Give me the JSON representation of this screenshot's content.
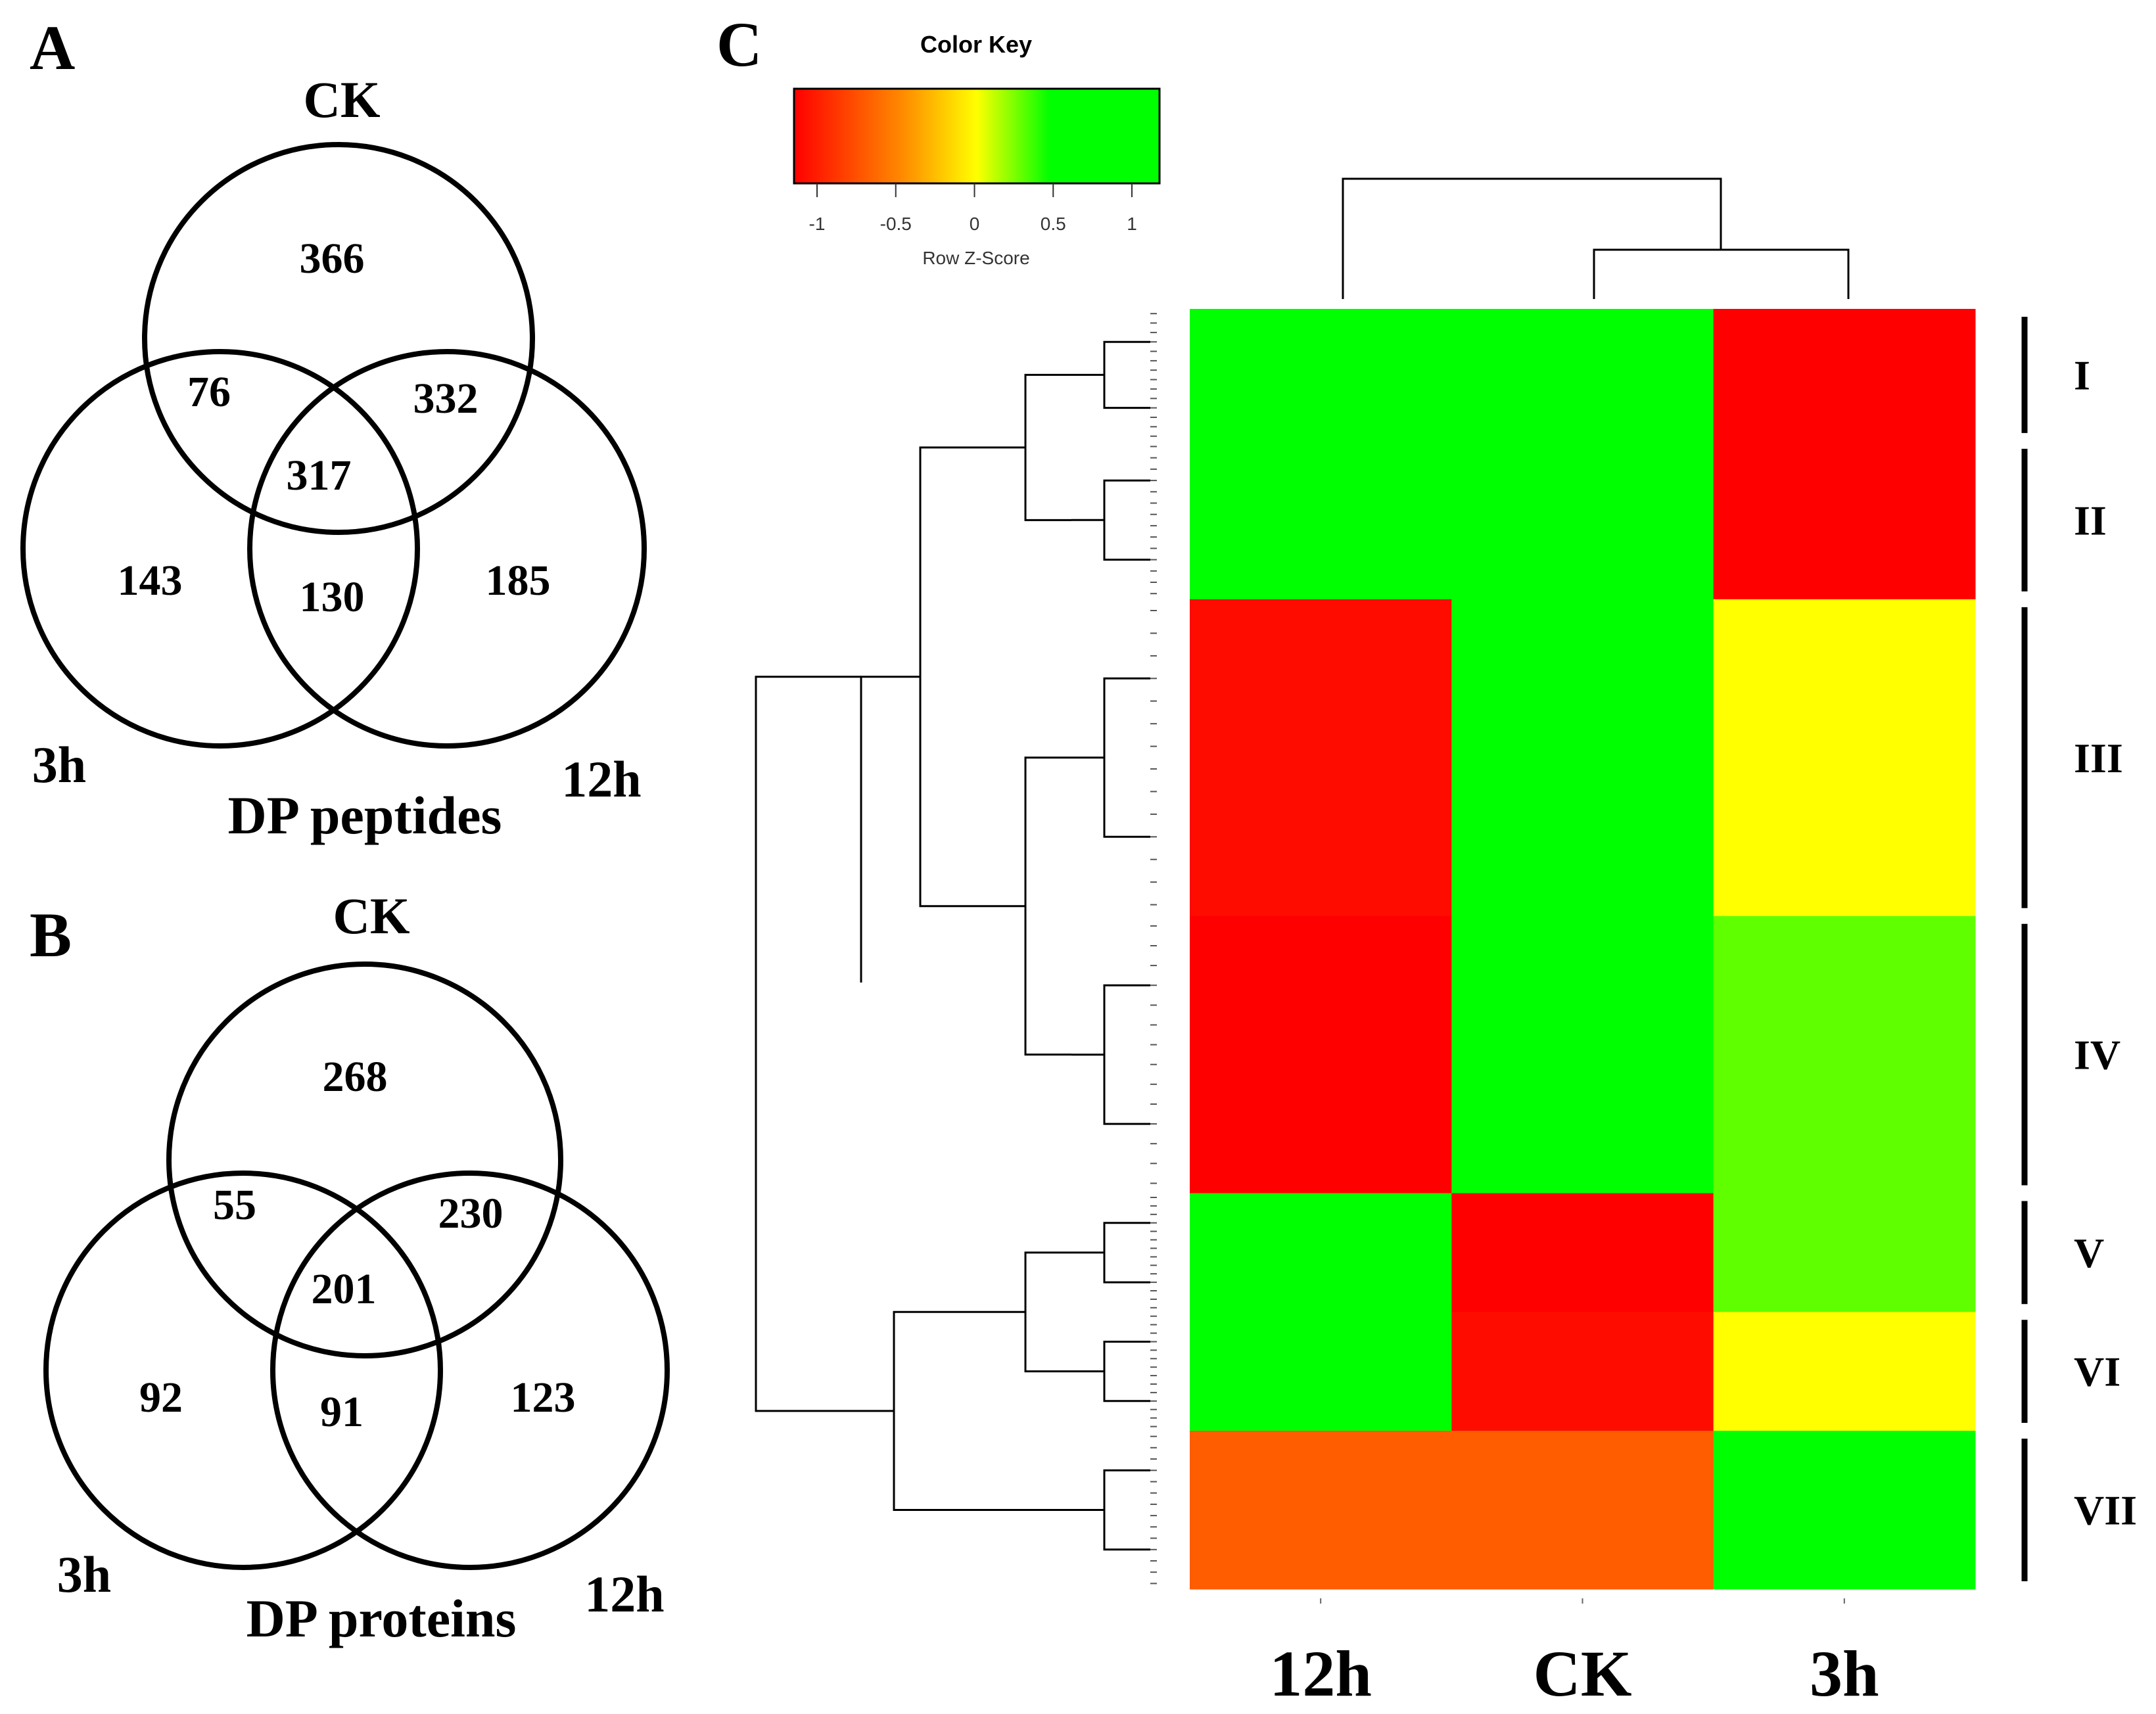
{
  "panels": {
    "A": {
      "letter": "A",
      "title": "DP peptides",
      "sets": [
        "CK",
        "3h",
        "12h"
      ],
      "regions": {
        "ck_only": "366",
        "ck_3h": "76",
        "ck_12h": "332",
        "all": "317",
        "h3_only": "143",
        "h3_12h": "130",
        "h12_only": "185"
      }
    },
    "B": {
      "letter": "B",
      "title": "DP proteins",
      "sets": [
        "CK",
        "3h",
        "12h"
      ],
      "regions": {
        "ck_only": "268",
        "ck_3h": "55",
        "ck_12h": "230",
        "all": "201",
        "h3_only": "92",
        "h3_12h": "91",
        "h12_only": "123"
      }
    },
    "C": {
      "letter": "C",
      "color_key": {
        "title": "Color Key",
        "label": "Row Z-Score",
        "ticks": [
          "-1",
          "-0.5",
          "0",
          "0.5",
          "1"
        ],
        "colors": [
          "#ff0000",
          "#ff8c00",
          "#ffff00",
          "#00ff00"
        ]
      }
    }
  },
  "chart_data": {
    "type": "heatmap",
    "columns": [
      "12h",
      "CK",
      "3h"
    ],
    "scale": [
      -1,
      1
    ],
    "clusters": [
      {
        "label": "I",
        "row_fraction": 0.1,
        "z": [
          0.9,
          0.9,
          -1.0
        ]
      },
      {
        "label": "II",
        "row_fraction": 0.12,
        "z": [
          0.9,
          0.9,
          -1.0
        ]
      },
      {
        "label": "III",
        "row_fraction": 0.24,
        "z": [
          -0.95,
          0.9,
          0.0
        ]
      },
      {
        "label": "IV",
        "row_fraction": 0.21,
        "z": [
          -1.0,
          0.9,
          0.25
        ]
      },
      {
        "label": "V",
        "row_fraction": 0.09,
        "z": [
          0.9,
          -1.0,
          0.25
        ]
      },
      {
        "label": "VI",
        "row_fraction": 0.09,
        "z": [
          0.9,
          -0.95,
          0.0
        ]
      },
      {
        "label": "VII",
        "row_fraction": 0.12,
        "z": [
          -0.6,
          -0.6,
          0.9
        ]
      }
    ]
  }
}
